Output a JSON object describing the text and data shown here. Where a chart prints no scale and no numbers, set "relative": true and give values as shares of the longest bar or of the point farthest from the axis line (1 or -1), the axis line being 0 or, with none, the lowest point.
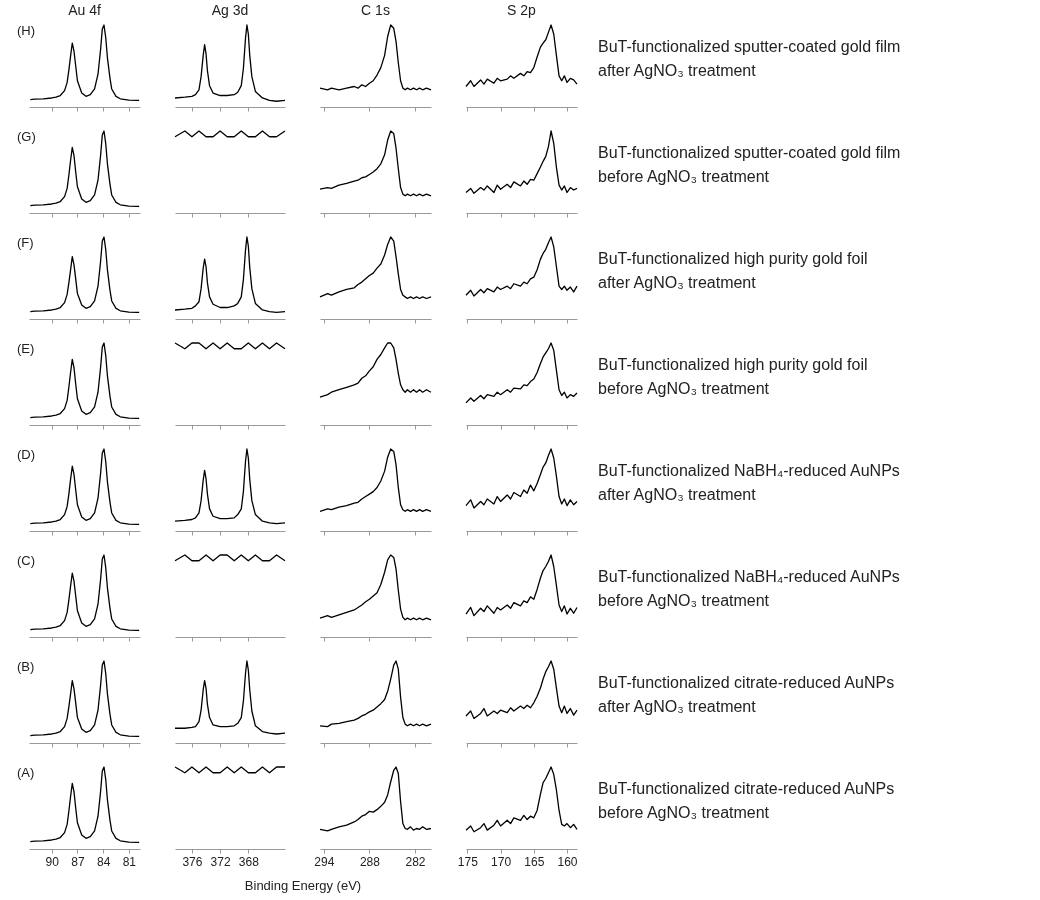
{
  "chart_data": [
    {
      "type": "line",
      "title": "Au 4f",
      "relative": true,
      "color": "#000000",
      "xlim": [
        92.65,
        79.7
      ],
      "xticks": [
        90,
        87,
        84,
        81
      ],
      "tick_labels": false,
      "annotations": [
        "(H)"
      ],
      "x": [
        92.5,
        92,
        91,
        90,
        89.5,
        89,
        88.5,
        88.2,
        88,
        87.8,
        87.6,
        87.4,
        87.2,
        87,
        86.5,
        86,
        85.5,
        85,
        84.6,
        84.3,
        84.1,
        83.9,
        83.7,
        83.5,
        83.2,
        83,
        82.5,
        82,
        81,
        80,
        79.8
      ],
      "values": [
        0.09,
        0.095,
        0.1,
        0.11,
        0.12,
        0.14,
        0.2,
        0.3,
        0.45,
        0.62,
        0.78,
        0.68,
        0.5,
        0.32,
        0.17,
        0.13,
        0.15,
        0.22,
        0.4,
        0.7,
        0.95,
        1,
        0.85,
        0.6,
        0.35,
        0.22,
        0.13,
        0.1,
        0.085,
        0.08,
        0.08
      ]
    },
    {
      "type": "line",
      "title": "Ag 3d",
      "relative": true,
      "color": "#000000",
      "xlim": [
        378.4,
        362.8
      ],
      "xticks": [
        376,
        372,
        368
      ],
      "tick_labels": false,
      "x": [
        378.4,
        377,
        376,
        375.5,
        375,
        374.7,
        374.4,
        374.2,
        374,
        373.8,
        373.5,
        373,
        372,
        371,
        370,
        369.5,
        369,
        368.7,
        368.4,
        368.2,
        368,
        367.8,
        367.5,
        367,
        366,
        365,
        364,
        362.8
      ],
      "values": [
        0.11,
        0.12,
        0.13,
        0.15,
        0.21,
        0.37,
        0.63,
        0.76,
        0.65,
        0.44,
        0.26,
        0.17,
        0.14,
        0.14,
        0.15,
        0.18,
        0.26,
        0.47,
        0.84,
        1,
        0.89,
        0.63,
        0.37,
        0.19,
        0.11,
        0.08,
        0.07,
        0.08
      ]
    },
    {
      "type": "line",
      "title": "C 1s",
      "relative": true,
      "color": "#000000",
      "xlim": [
        294.5,
        279.9
      ],
      "xticks": [
        294,
        288,
        282
      ],
      "tick_labels": false,
      "x": [
        294.5,
        293.5,
        293,
        292,
        291,
        290,
        289.5,
        289,
        288.5,
        288,
        287.5,
        287,
        286.5,
        286,
        285.6,
        285.2,
        284.8,
        284.5,
        284.2,
        283.9,
        283.6,
        283.3,
        283,
        282.6,
        282.2,
        281.8,
        281.4,
        281,
        280.5,
        279.9
      ],
      "values": [
        0.23,
        0.21,
        0.23,
        0.21,
        0.23,
        0.25,
        0.23,
        0.27,
        0.25,
        0.29,
        0.32,
        0.39,
        0.48,
        0.63,
        0.86,
        1,
        0.96,
        0.8,
        0.54,
        0.32,
        0.23,
        0.21,
        0.23,
        0.21,
        0.23,
        0.21,
        0.23,
        0.21,
        0.23,
        0.21
      ]
    },
    {
      "type": "line",
      "title": "S 2p",
      "relative": true,
      "color": "#000000",
      "xlim": [
        175.2,
        158.5
      ],
      "xticks": [
        175,
        170,
        165,
        160
      ],
      "tick_labels": false,
      "annotations": [
        "BuT-functionalized sputter-coated gold film",
        "after AgNO₃ treatment"
      ],
      "x": [
        175.2,
        174.5,
        174,
        173,
        172.5,
        172,
        171,
        170.5,
        170,
        169,
        168.5,
        168,
        167,
        166.5,
        166,
        165.5,
        165,
        164.5,
        164,
        163.6,
        163.2,
        162.8,
        162.4,
        162,
        161.6,
        161.2,
        160.8,
        160.4,
        160,
        159.5,
        159,
        158.5
      ],
      "values": [
        0.25,
        0.32,
        0.25,
        0.33,
        0.28,
        0.34,
        0.29,
        0.35,
        0.32,
        0.34,
        0.38,
        0.35,
        0.41,
        0.38,
        0.43,
        0.42,
        0.48,
        0.61,
        0.73,
        0.78,
        0.82,
        0.91,
        1,
        0.89,
        0.63,
        0.38,
        0.32,
        0.38,
        0.3,
        0.35,
        0.33,
        0.28
      ]
    },
    {
      "type": "line",
      "relative": true,
      "color": "#000000",
      "xlim": [
        92.65,
        79.7
      ],
      "xticks": [
        90,
        87,
        84,
        81
      ],
      "tick_labels": false,
      "annotations": [
        "(G)"
      ],
      "x": [
        92.5,
        92,
        91,
        90,
        89.5,
        89,
        88.5,
        88.2,
        88,
        87.8,
        87.6,
        87.4,
        87.2,
        87,
        86.5,
        86,
        85.5,
        85,
        84.6,
        84.3,
        84.1,
        83.9,
        83.7,
        83.5,
        83.2,
        83,
        82.5,
        82,
        81,
        80,
        79.8
      ],
      "values": [
        0.09,
        0.095,
        0.1,
        0.11,
        0.12,
        0.14,
        0.2,
        0.3,
        0.46,
        0.64,
        0.8,
        0.7,
        0.5,
        0.32,
        0.17,
        0.13,
        0.15,
        0.22,
        0.4,
        0.7,
        0.95,
        1,
        0.85,
        0.6,
        0.35,
        0.22,
        0.13,
        0.1,
        0.085,
        0.08,
        0.08
      ]
    },
    {
      "type": "line",
      "relative": true,
      "color": "#000000",
      "xlim": [
        378.4,
        362.8
      ],
      "xticks": [
        376,
        372,
        368
      ],
      "tick_labels": false,
      "x": [
        378.4,
        377,
        376,
        375,
        374,
        373,
        372,
        371,
        370,
        369,
        368,
        367,
        366,
        365,
        364,
        362.8
      ],
      "values": [
        0.93,
        1,
        0.93,
        1,
        0.93,
        0.93,
        1,
        0.93,
        0.93,
        1,
        0.93,
        0.93,
        1,
        0.93,
        0.93,
        1
      ]
    },
    {
      "type": "line",
      "relative": true,
      "color": "#000000",
      "xlim": [
        294.5,
        279.9
      ],
      "xticks": [
        294,
        288,
        282
      ],
      "tick_labels": false,
      "x": [
        294.5,
        293.5,
        293,
        292,
        291,
        290,
        289.5,
        289,
        288.5,
        288,
        287.5,
        287,
        286.5,
        286,
        285.6,
        285.2,
        284.8,
        284.5,
        284.2,
        283.9,
        283.6,
        283.3,
        283,
        282.6,
        282.2,
        281.8,
        281.4,
        281,
        280.5,
        279.9
      ],
      "values": [
        0.29,
        0.31,
        0.3,
        0.34,
        0.36,
        0.39,
        0.4,
        0.43,
        0.44,
        0.47,
        0.5,
        0.54,
        0.6,
        0.71,
        0.89,
        1,
        0.97,
        0.79,
        0.54,
        0.31,
        0.23,
        0.21,
        0.23,
        0.21,
        0.23,
        0.21,
        0.23,
        0.21,
        0.23,
        0.21
      ]
    },
    {
      "type": "line",
      "relative": true,
      "color": "#000000",
      "xlim": [
        175.2,
        158.5
      ],
      "xticks": [
        175,
        170,
        165,
        160
      ],
      "tick_labels": false,
      "annotations": [
        "BuT-functionalized sputter-coated gold film",
        "before AgNO₃ treatment"
      ],
      "x": [
        175.2,
        174.5,
        174,
        173,
        172.5,
        172,
        171,
        170.5,
        170,
        169,
        168.5,
        168,
        167,
        166.5,
        166,
        165.5,
        165,
        164.5,
        164,
        163.6,
        163.2,
        162.8,
        162.4,
        162,
        161.6,
        161.2,
        160.8,
        160.4,
        160,
        159.5,
        159,
        158.5
      ],
      "values": [
        0.25,
        0.3,
        0.24,
        0.31,
        0.28,
        0.33,
        0.25,
        0.34,
        0.29,
        0.35,
        0.31,
        0.38,
        0.33,
        0.39,
        0.35,
        0.41,
        0.4,
        0.48,
        0.56,
        0.63,
        0.69,
        0.81,
        1,
        0.85,
        0.56,
        0.34,
        0.28,
        0.33,
        0.25,
        0.31,
        0.28,
        0.3
      ]
    },
    {
      "type": "line",
      "relative": true,
      "color": "#000000",
      "xlim": [
        92.65,
        79.7
      ],
      "xticks": [
        90,
        87,
        84,
        81
      ],
      "tick_labels": false,
      "annotations": [
        "(F)"
      ],
      "x": [
        92.5,
        92,
        91,
        90,
        89.5,
        89,
        88.5,
        88.2,
        88,
        87.8,
        87.6,
        87.4,
        87.2,
        87,
        86.5,
        86,
        85.5,
        85,
        84.6,
        84.3,
        84.1,
        83.9,
        83.7,
        83.5,
        83.2,
        83,
        82.5,
        82,
        81,
        80,
        79.8
      ],
      "values": [
        0.09,
        0.095,
        0.1,
        0.11,
        0.12,
        0.14,
        0.2,
        0.3,
        0.44,
        0.6,
        0.76,
        0.66,
        0.49,
        0.31,
        0.17,
        0.13,
        0.15,
        0.22,
        0.4,
        0.7,
        0.95,
        1,
        0.85,
        0.6,
        0.35,
        0.22,
        0.13,
        0.1,
        0.085,
        0.08,
        0.08
      ]
    },
    {
      "type": "line",
      "relative": true,
      "color": "#000000",
      "xlim": [
        378.4,
        362.8
      ],
      "xticks": [
        376,
        372,
        368
      ],
      "tick_labels": false,
      "x": [
        378.4,
        377,
        376,
        375.5,
        375,
        374.7,
        374.4,
        374.2,
        374,
        373.8,
        373.5,
        373,
        372,
        371,
        370,
        369.5,
        369,
        368.7,
        368.4,
        368.2,
        368,
        367.8,
        367.5,
        367,
        366,
        365,
        364,
        362.8
      ],
      "values": [
        0.11,
        0.12,
        0.13,
        0.16,
        0.21,
        0.37,
        0.62,
        0.73,
        0.64,
        0.44,
        0.27,
        0.18,
        0.14,
        0.14,
        0.16,
        0.19,
        0.27,
        0.48,
        0.84,
        1,
        0.89,
        0.63,
        0.37,
        0.19,
        0.11,
        0.09,
        0.08,
        0.09
      ]
    },
    {
      "type": "line",
      "relative": true,
      "color": "#000000",
      "xlim": [
        294.5,
        279.9
      ],
      "xticks": [
        294,
        288,
        282
      ],
      "tick_labels": false,
      "x": [
        294.5,
        293.5,
        293,
        292,
        291,
        290,
        289.5,
        289,
        288.5,
        288,
        287.5,
        287,
        286.5,
        286,
        285.6,
        285.2,
        284.8,
        284.5,
        284.2,
        283.9,
        283.6,
        283.3,
        283,
        282.6,
        282.2,
        281.8,
        281.4,
        281,
        280.5,
        279.9
      ],
      "values": [
        0.27,
        0.31,
        0.29,
        0.33,
        0.36,
        0.38,
        0.42,
        0.45,
        0.49,
        0.53,
        0.56,
        0.62,
        0.67,
        0.78,
        0.91,
        1,
        0.95,
        0.76,
        0.55,
        0.36,
        0.29,
        0.27,
        0.25,
        0.27,
        0.25,
        0.27,
        0.25,
        0.27,
        0.25,
        0.27
      ]
    },
    {
      "type": "line",
      "relative": true,
      "color": "#000000",
      "xlim": [
        175.2,
        158.5
      ],
      "xticks": [
        175,
        170,
        165,
        160
      ],
      "tick_labels": false,
      "annotations": [
        "BuT-functionalized high purity gold foil",
        "after AgNO₃ treatment"
      ],
      "x": [
        175.2,
        174.5,
        174,
        173,
        172.5,
        172,
        171,
        170.5,
        170,
        169,
        168.5,
        168,
        167,
        166.5,
        166,
        165.5,
        165,
        164.5,
        164,
        163.6,
        163.2,
        162.8,
        162.4,
        162,
        161.6,
        161.2,
        160.8,
        160.4,
        160,
        159.5,
        159,
        158.5
      ],
      "values": [
        0.29,
        0.35,
        0.28,
        0.36,
        0.32,
        0.37,
        0.33,
        0.39,
        0.36,
        0.4,
        0.37,
        0.43,
        0.4,
        0.45,
        0.43,
        0.49,
        0.51,
        0.6,
        0.73,
        0.8,
        0.85,
        0.93,
        1,
        0.88,
        0.64,
        0.4,
        0.36,
        0.4,
        0.35,
        0.39,
        0.33,
        0.4
      ]
    },
    {
      "type": "line",
      "relative": true,
      "color": "#000000",
      "xlim": [
        92.65,
        79.7
      ],
      "xticks": [
        90,
        87,
        84,
        81
      ],
      "tick_labels": false,
      "annotations": [
        "(E)"
      ],
      "x": [
        92.5,
        92,
        91,
        90,
        89.5,
        89,
        88.5,
        88.2,
        88,
        87.8,
        87.6,
        87.4,
        87.2,
        87,
        86.5,
        86,
        85.5,
        85,
        84.6,
        84.3,
        84.1,
        83.9,
        83.7,
        83.5,
        83.2,
        83,
        82.5,
        82,
        81,
        80,
        79.8
      ],
      "values": [
        0.09,
        0.095,
        0.1,
        0.11,
        0.12,
        0.14,
        0.2,
        0.3,
        0.46,
        0.64,
        0.8,
        0.7,
        0.5,
        0.32,
        0.17,
        0.13,
        0.15,
        0.22,
        0.4,
        0.7,
        0.95,
        1,
        0.85,
        0.6,
        0.35,
        0.22,
        0.13,
        0.1,
        0.085,
        0.08,
        0.08
      ]
    },
    {
      "type": "line",
      "relative": true,
      "color": "#000000",
      "xlim": [
        378.4,
        362.8
      ],
      "xticks": [
        376,
        372,
        368
      ],
      "tick_labels": false,
      "x": [
        378.4,
        377,
        376,
        375,
        374,
        373,
        372,
        371,
        370,
        369,
        368,
        367,
        366,
        365,
        364,
        362.8
      ],
      "values": [
        1,
        0.93,
        1,
        1,
        0.93,
        1,
        0.93,
        1,
        0.93,
        0.93,
        1,
        0.93,
        1,
        0.93,
        1,
        0.93
      ]
    },
    {
      "type": "line",
      "relative": true,
      "color": "#000000",
      "xlim": [
        294.5,
        279.9
      ],
      "xticks": [
        294,
        288,
        282
      ],
      "tick_labels": false,
      "x": [
        294.5,
        293.5,
        293,
        292,
        291,
        290,
        289.5,
        289,
        288.5,
        288,
        287.5,
        287,
        286.5,
        286,
        285.6,
        285.2,
        284.8,
        284.5,
        284.2,
        283.9,
        283.6,
        283.3,
        283,
        282.6,
        282.2,
        281.8,
        281.4,
        281,
        280.5,
        279.9
      ],
      "values": [
        0.34,
        0.37,
        0.4,
        0.43,
        0.46,
        0.49,
        0.51,
        0.57,
        0.6,
        0.66,
        0.71,
        0.8,
        0.86,
        0.94,
        1,
        1,
        0.94,
        0.8,
        0.63,
        0.49,
        0.43,
        0.4,
        0.43,
        0.4,
        0.43,
        0.4,
        0.43,
        0.4,
        0.43,
        0.4
      ]
    },
    {
      "type": "line",
      "relative": true,
      "color": "#000000",
      "xlim": [
        175.2,
        158.5
      ],
      "xticks": [
        175,
        170,
        165,
        160
      ],
      "tick_labels": false,
      "annotations": [
        "BuT-functionalized high purity gold foil",
        "before AgNO₃ treatment"
      ],
      "x": [
        175.2,
        174.5,
        174,
        173,
        172.5,
        172,
        171,
        170.5,
        170,
        169,
        168.5,
        168,
        167,
        166.5,
        166,
        165.5,
        165,
        164.5,
        164,
        163.6,
        163.2,
        162.8,
        162.4,
        162,
        161.6,
        161.2,
        160.8,
        160.4,
        160,
        159.5,
        159,
        158.5
      ],
      "values": [
        0.27,
        0.33,
        0.29,
        0.36,
        0.32,
        0.37,
        0.35,
        0.4,
        0.37,
        0.43,
        0.4,
        0.45,
        0.44,
        0.49,
        0.48,
        0.53,
        0.56,
        0.64,
        0.75,
        0.83,
        0.88,
        0.93,
        1,
        0.91,
        0.67,
        0.43,
        0.36,
        0.4,
        0.33,
        0.37,
        0.35,
        0.39
      ]
    },
    {
      "type": "line",
      "relative": true,
      "color": "#000000",
      "xlim": [
        92.65,
        79.7
      ],
      "xticks": [
        90,
        87,
        84,
        81
      ],
      "tick_labels": false,
      "annotations": [
        "(D)"
      ],
      "x": [
        92.5,
        92,
        91,
        90,
        89.5,
        89,
        88.5,
        88.2,
        88,
        87.8,
        87.6,
        87.4,
        87.2,
        87,
        86.5,
        86,
        85.5,
        85,
        84.6,
        84.3,
        84.1,
        83.9,
        83.7,
        83.5,
        83.2,
        83,
        82.5,
        82,
        81,
        80,
        79.8
      ],
      "values": [
        0.09,
        0.095,
        0.1,
        0.11,
        0.12,
        0.14,
        0.2,
        0.3,
        0.45,
        0.63,
        0.79,
        0.69,
        0.5,
        0.32,
        0.17,
        0.13,
        0.15,
        0.22,
        0.4,
        0.7,
        0.95,
        1,
        0.85,
        0.6,
        0.35,
        0.22,
        0.13,
        0.1,
        0.085,
        0.08,
        0.08
      ]
    },
    {
      "type": "line",
      "relative": true,
      "color": "#000000",
      "xlim": [
        378.4,
        362.8
      ],
      "xticks": [
        376,
        372,
        368
      ],
      "tick_labels": false,
      "x": [
        378.4,
        377,
        376,
        375.5,
        375,
        374.7,
        374.4,
        374.2,
        374,
        373.8,
        373.5,
        373,
        372,
        371,
        370,
        369.5,
        369,
        368.7,
        368.4,
        368.2,
        368,
        367.8,
        367.5,
        367,
        366,
        365,
        364,
        362.8
      ],
      "values": [
        0.12,
        0.13,
        0.14,
        0.16,
        0.22,
        0.37,
        0.62,
        0.74,
        0.64,
        0.45,
        0.27,
        0.18,
        0.15,
        0.15,
        0.16,
        0.2,
        0.27,
        0.48,
        0.85,
        1,
        0.89,
        0.63,
        0.37,
        0.2,
        0.12,
        0.1,
        0.09,
        0.1
      ]
    },
    {
      "type": "line",
      "relative": true,
      "color": "#000000",
      "xlim": [
        294.5,
        279.9
      ],
      "xticks": [
        294,
        288,
        282
      ],
      "tick_labels": false,
      "x": [
        294.5,
        293.5,
        293,
        292,
        291,
        290,
        289.5,
        289,
        288.5,
        288,
        287.5,
        287,
        286.5,
        286,
        285.6,
        285.2,
        284.8,
        284.5,
        284.2,
        283.9,
        283.6,
        283.3,
        283,
        282.6,
        282.2,
        281.8,
        281.4,
        281,
        280.5,
        279.9
      ],
      "values": [
        0.24,
        0.27,
        0.26,
        0.29,
        0.31,
        0.34,
        0.35,
        0.39,
        0.42,
        0.45,
        0.48,
        0.53,
        0.61,
        0.73,
        0.9,
        1,
        0.97,
        0.81,
        0.53,
        0.32,
        0.26,
        0.24,
        0.26,
        0.24,
        0.26,
        0.24,
        0.26,
        0.24,
        0.26,
        0.24
      ]
    },
    {
      "type": "line",
      "relative": true,
      "color": "#000000",
      "xlim": [
        175.2,
        158.5
      ],
      "xticks": [
        175,
        170,
        165,
        160
      ],
      "tick_labels": false,
      "annotations": [
        "BuT-functionalized NaBH₄-reduced AuNPs",
        "after AgNO₃ treatment"
      ],
      "x": [
        175.2,
        174.5,
        174,
        173,
        172.5,
        172,
        171,
        170.5,
        170,
        169,
        168.5,
        168,
        167,
        166.5,
        166,
        165.5,
        165,
        164.5,
        164,
        163.6,
        163.2,
        162.8,
        162.4,
        162,
        161.6,
        161.2,
        160.8,
        160.4,
        160,
        159.5,
        159,
        158.5
      ],
      "values": [
        0.31,
        0.38,
        0.28,
        0.36,
        0.32,
        0.39,
        0.33,
        0.42,
        0.36,
        0.44,
        0.39,
        0.47,
        0.42,
        0.5,
        0.46,
        0.56,
        0.49,
        0.58,
        0.69,
        0.78,
        0.83,
        0.92,
        1,
        0.89,
        0.67,
        0.42,
        0.33,
        0.39,
        0.31,
        0.38,
        0.32,
        0.36
      ]
    },
    {
      "type": "line",
      "relative": true,
      "color": "#000000",
      "xlim": [
        92.65,
        79.7
      ],
      "xticks": [
        90,
        87,
        84,
        81
      ],
      "tick_labels": false,
      "annotations": [
        "(C)"
      ],
      "x": [
        92.5,
        92,
        91,
        90,
        89.5,
        89,
        88.5,
        88.2,
        88,
        87.8,
        87.6,
        87.4,
        87.2,
        87,
        86.5,
        86,
        85.5,
        85,
        84.6,
        84.3,
        84.1,
        83.9,
        83.7,
        83.5,
        83.2,
        83,
        82.5,
        82,
        81,
        80,
        79.8
      ],
      "values": [
        0.09,
        0.095,
        0.1,
        0.11,
        0.12,
        0.14,
        0.2,
        0.3,
        0.45,
        0.62,
        0.78,
        0.68,
        0.5,
        0.32,
        0.17,
        0.13,
        0.15,
        0.22,
        0.4,
        0.7,
        0.95,
        1,
        0.85,
        0.6,
        0.35,
        0.22,
        0.13,
        0.1,
        0.085,
        0.08,
        0.08
      ]
    },
    {
      "type": "line",
      "relative": true,
      "color": "#000000",
      "xlim": [
        378.4,
        362.8
      ],
      "xticks": [
        376,
        372,
        368
      ],
      "tick_labels": false,
      "x": [
        378.4,
        377,
        376,
        375,
        374,
        373,
        372,
        371,
        370,
        369,
        368,
        367,
        366,
        365,
        364,
        362.8
      ],
      "values": [
        0.93,
        1,
        0.93,
        0.93,
        1,
        0.93,
        1,
        1,
        0.93,
        1,
        0.93,
        1,
        0.93,
        0.93,
        1,
        0.93
      ]
    },
    {
      "type": "line",
      "relative": true,
      "color": "#000000",
      "xlim": [
        294.5,
        279.9
      ],
      "xticks": [
        294,
        288,
        282
      ],
      "tick_labels": false,
      "x": [
        294.5,
        293.5,
        293,
        292,
        291,
        290,
        289.5,
        289,
        288.5,
        288,
        287.5,
        287,
        286.5,
        286,
        285.6,
        285.2,
        284.8,
        284.5,
        284.2,
        283.9,
        283.6,
        283.3,
        283,
        282.6,
        282.2,
        281.8,
        281.4,
        281,
        280.5,
        279.9
      ],
      "values": [
        0.23,
        0.26,
        0.24,
        0.27,
        0.3,
        0.33,
        0.36,
        0.39,
        0.43,
        0.46,
        0.5,
        0.54,
        0.64,
        0.79,
        0.94,
        1,
        0.97,
        0.83,
        0.57,
        0.34,
        0.24,
        0.21,
        0.23,
        0.21,
        0.23,
        0.21,
        0.23,
        0.21,
        0.23,
        0.21
      ]
    },
    {
      "type": "line",
      "relative": true,
      "color": "#000000",
      "xlim": [
        175.2,
        158.5
      ],
      "xticks": [
        175,
        170,
        165,
        160
      ],
      "tick_labels": false,
      "annotations": [
        "BuT-functionalized NaBH₄-reduced AuNPs",
        "before AgNO₃ treatment"
      ],
      "x": [
        175.2,
        174.5,
        174,
        173,
        172.5,
        172,
        171,
        170.5,
        170,
        169,
        168.5,
        168,
        167,
        166.5,
        166,
        165.5,
        165,
        164.5,
        164,
        163.6,
        163.2,
        162.8,
        162.4,
        162,
        161.6,
        161.2,
        160.8,
        160.4,
        160,
        159.5,
        159,
        158.5
      ],
      "values": [
        0.28,
        0.36,
        0.26,
        0.35,
        0.31,
        0.38,
        0.29,
        0.36,
        0.33,
        0.39,
        0.35,
        0.42,
        0.38,
        0.44,
        0.42,
        0.49,
        0.46,
        0.58,
        0.72,
        0.81,
        0.86,
        0.92,
        1,
        0.86,
        0.63,
        0.39,
        0.31,
        0.38,
        0.28,
        0.35,
        0.29,
        0.36
      ]
    },
    {
      "type": "line",
      "relative": true,
      "color": "#000000",
      "xlim": [
        92.65,
        79.7
      ],
      "xticks": [
        90,
        87,
        84,
        81
      ],
      "tick_labels": false,
      "annotations": [
        "(B)"
      ],
      "x": [
        92.5,
        92,
        91,
        90,
        89.5,
        89,
        88.5,
        88.2,
        88,
        87.8,
        87.6,
        87.4,
        87.2,
        87,
        86.5,
        86,
        85.5,
        85,
        84.6,
        84.3,
        84.1,
        83.9,
        83.7,
        83.5,
        83.2,
        83,
        82.5,
        82,
        81,
        80,
        79.8
      ],
      "values": [
        0.09,
        0.095,
        0.1,
        0.11,
        0.12,
        0.14,
        0.2,
        0.3,
        0.44,
        0.6,
        0.76,
        0.66,
        0.49,
        0.31,
        0.17,
        0.13,
        0.15,
        0.22,
        0.4,
        0.7,
        0.95,
        1,
        0.85,
        0.6,
        0.35,
        0.22,
        0.13,
        0.1,
        0.085,
        0.08,
        0.08
      ]
    },
    {
      "type": "line",
      "relative": true,
      "color": "#000000",
      "xlim": [
        378.4,
        362.8
      ],
      "xticks": [
        376,
        372,
        368
      ],
      "tick_labels": false,
      "x": [
        378.4,
        377,
        376,
        375.5,
        375,
        374.7,
        374.4,
        374.2,
        374,
        373.8,
        373.5,
        373,
        372,
        371,
        370,
        369.5,
        369,
        368.7,
        368.4,
        368.2,
        368,
        367.8,
        367.5,
        367,
        366,
        365,
        364,
        362.8
      ],
      "values": [
        0.18,
        0.18,
        0.19,
        0.2,
        0.26,
        0.4,
        0.65,
        0.76,
        0.67,
        0.47,
        0.31,
        0.22,
        0.2,
        0.2,
        0.21,
        0.24,
        0.31,
        0.51,
        0.85,
        1,
        0.89,
        0.65,
        0.39,
        0.21,
        0.14,
        0.12,
        0.11,
        0.12
      ]
    },
    {
      "type": "line",
      "relative": true,
      "color": "#000000",
      "xlim": [
        294.5,
        279.9
      ],
      "xticks": [
        294,
        288,
        282
      ],
      "tick_labels": false,
      "x": [
        294.5,
        293.5,
        293,
        292,
        291,
        290,
        289.5,
        289,
        288.5,
        288,
        287.5,
        287,
        286.5,
        286,
        285.6,
        285.2,
        284.8,
        284.5,
        284.2,
        283.9,
        283.6,
        283.3,
        283,
        282.6,
        282.2,
        281.8,
        281.4,
        281,
        280.5,
        279.9
      ],
      "values": [
        0.21,
        0.2,
        0.23,
        0.24,
        0.26,
        0.28,
        0.3,
        0.33,
        0.35,
        0.38,
        0.4,
        0.44,
        0.48,
        0.53,
        0.63,
        0.78,
        0.95,
        1,
        0.9,
        0.56,
        0.31,
        0.23,
        0.21,
        0.23,
        0.21,
        0.23,
        0.21,
        0.23,
        0.21,
        0.23
      ]
    },
    {
      "type": "line",
      "relative": true,
      "color": "#000000",
      "xlim": [
        175.2,
        158.5
      ],
      "xticks": [
        175,
        170,
        165,
        160
      ],
      "tick_labels": false,
      "annotations": [
        "BuT-functionalized citrate-reduced AuNPs",
        "after AgNO₃ treatment"
      ],
      "x": [
        175.2,
        174.5,
        174,
        173,
        172.5,
        172,
        171,
        170.5,
        170,
        169,
        168.5,
        168,
        167,
        166.5,
        166,
        165.5,
        165,
        164.5,
        164,
        163.6,
        163.2,
        162.8,
        162.4,
        162,
        161.6,
        161.2,
        160.8,
        160.4,
        160,
        159.5,
        159,
        158.5
      ],
      "values": [
        0.33,
        0.39,
        0.3,
        0.36,
        0.42,
        0.33,
        0.39,
        0.36,
        0.4,
        0.37,
        0.43,
        0.39,
        0.45,
        0.42,
        0.46,
        0.43,
        0.49,
        0.57,
        0.67,
        0.78,
        0.87,
        0.93,
        1,
        0.9,
        0.67,
        0.45,
        0.37,
        0.45,
        0.36,
        0.42,
        0.34,
        0.4
      ]
    },
    {
      "type": "line",
      "relative": true,
      "color": "#000000",
      "xlim": [
        92.65,
        79.7
      ],
      "xticks": [
        90,
        87,
        84,
        81
      ],
      "tick_labels": "x",
      "annotations": [
        "(A)"
      ],
      "x": [
        92.5,
        92,
        91,
        90,
        89.5,
        89,
        88.5,
        88.2,
        88,
        87.8,
        87.6,
        87.4,
        87.2,
        87,
        86.5,
        86,
        85.5,
        85,
        84.6,
        84.3,
        84.1,
        83.9,
        83.7,
        83.5,
        83.2,
        83,
        82.5,
        82,
        81,
        80,
        79.8
      ],
      "values": [
        0.09,
        0.095,
        0.1,
        0.11,
        0.12,
        0.14,
        0.2,
        0.3,
        0.46,
        0.64,
        0.8,
        0.7,
        0.5,
        0.32,
        0.17,
        0.13,
        0.15,
        0.22,
        0.4,
        0.7,
        0.95,
        1,
        0.85,
        0.6,
        0.35,
        0.22,
        0.13,
        0.1,
        0.085,
        0.08,
        0.08
      ]
    },
    {
      "type": "line",
      "relative": true,
      "color": "#000000",
      "xlim": [
        378.4,
        362.8
      ],
      "xticks": [
        376,
        372,
        368
      ],
      "tick_labels": "x",
      "xlabel": "Binding Energy (eV)",
      "x": [
        378.4,
        377,
        376,
        375,
        374,
        373,
        372,
        371,
        370,
        369,
        368,
        367,
        366,
        365,
        364,
        362.8
      ],
      "values": [
        1,
        0.93,
        1,
        0.93,
        1,
        0.93,
        0.93,
        1,
        0.93,
        1,
        0.93,
        0.93,
        1,
        0.93,
        1,
        1
      ]
    },
    {
      "type": "line",
      "relative": true,
      "color": "#000000",
      "xlim": [
        294.5,
        279.9
      ],
      "xticks": [
        294,
        288,
        282
      ],
      "tick_labels": "x",
      "x": [
        294.5,
        293.5,
        293,
        292,
        291,
        290,
        289.5,
        289,
        288.5,
        288,
        287.5,
        287,
        286.5,
        286,
        285.6,
        285.2,
        284.8,
        284.5,
        284.2,
        283.9,
        283.6,
        283.3,
        283,
        282.6,
        282.2,
        281.8,
        281.4,
        281,
        280.5,
        279.9
      ],
      "values": [
        0.24,
        0.22,
        0.24,
        0.27,
        0.29,
        0.33,
        0.36,
        0.4,
        0.42,
        0.46,
        0.45,
        0.48,
        0.52,
        0.57,
        0.66,
        0.82,
        0.96,
        1,
        0.92,
        0.58,
        0.31,
        0.25,
        0.24,
        0.27,
        0.23,
        0.25,
        0.24,
        0.27,
        0.24,
        0.25
      ]
    },
    {
      "type": "line",
      "relative": true,
      "color": "#000000",
      "xlim": [
        175.2,
        158.5
      ],
      "xticks": [
        175,
        170,
        165,
        160
      ],
      "tick_labels": "x",
      "annotations": [
        "BuT-functionalized citrate-reduced AuNPs",
        "before AgNO₃ treatment"
      ],
      "x": [
        175.2,
        174.5,
        174,
        173,
        172.5,
        172,
        171,
        170.5,
        170,
        169,
        168.5,
        168,
        167,
        166.5,
        166,
        165.5,
        165,
        164.5,
        164,
        163.6,
        163.2,
        162.8,
        162.4,
        162,
        161.6,
        161.2,
        160.8,
        160.4,
        160,
        159.5,
        159,
        158.5
      ],
      "values": [
        0.23,
        0.28,
        0.21,
        0.26,
        0.31,
        0.23,
        0.29,
        0.35,
        0.28,
        0.35,
        0.31,
        0.38,
        0.35,
        0.41,
        0.36,
        0.4,
        0.38,
        0.47,
        0.67,
        0.81,
        0.86,
        0.93,
        1,
        0.91,
        0.72,
        0.47,
        0.3,
        0.28,
        0.31,
        0.26,
        0.3,
        0.24
      ]
    }
  ]
}
